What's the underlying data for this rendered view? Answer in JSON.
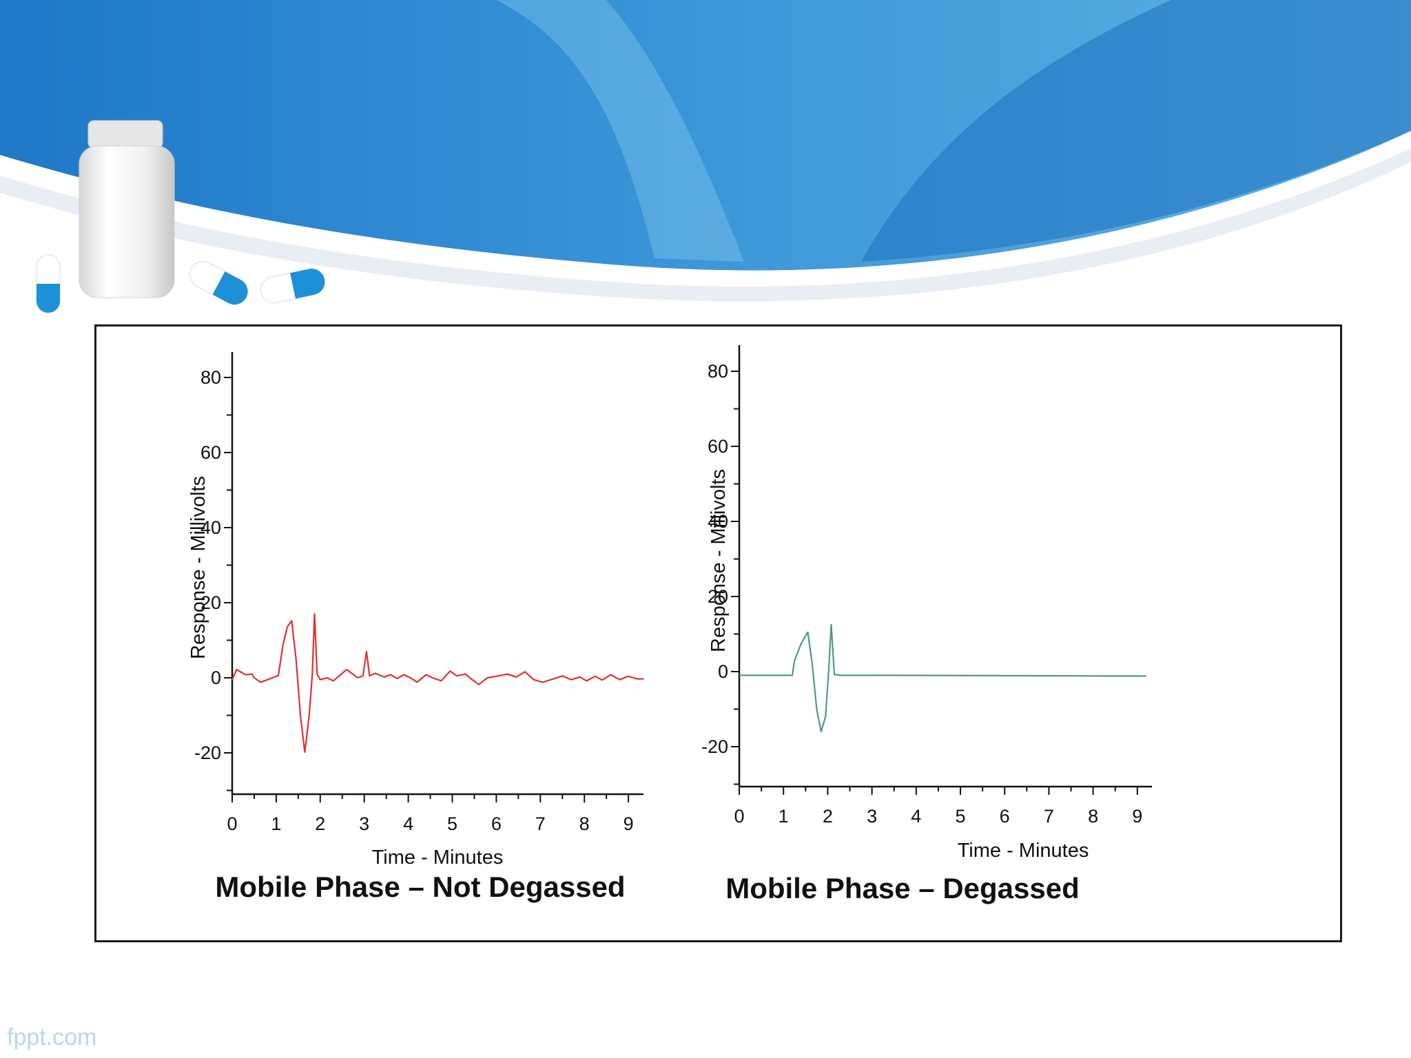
{
  "slide": {
    "watermark": "fppt.com",
    "colors": {
      "banner_dark": "#1d73c4",
      "banner_light": "#5fb1e1",
      "capsule_blue": "#1e90d8",
      "frame": "#1a1a1a"
    },
    "decorations": [
      "pill-bottle-icon",
      "capsule-icon",
      "capsule-icon",
      "capsule-icon"
    ]
  },
  "chart_data": [
    {
      "type": "line",
      "caption": "Mobile Phase – Not Degassed",
      "xlabel": "Time - Minutes",
      "ylabel": "Response - Millivolts",
      "xlim": [
        0,
        9.35
      ],
      "ylim": [
        -30,
        88
      ],
      "xticks": [
        0,
        1,
        2,
        3,
        4,
        5,
        6,
        7,
        8,
        9
      ],
      "yticks": [
        -20,
        0,
        20,
        40,
        60,
        80
      ],
      "grid": false,
      "series": [
        {
          "color": "#e03030",
          "points": [
            [
              0,
              -0.5
            ],
            [
              0.1,
              2.2
            ],
            [
              0.3,
              0.8
            ],
            [
              0.45,
              1.0
            ],
            [
              0.5,
              0.0
            ],
            [
              0.65,
              -1.2
            ],
            [
              0.85,
              -0.3
            ],
            [
              1.05,
              0.6
            ],
            [
              1.15,
              8.5
            ],
            [
              1.25,
              13.5
            ],
            [
              1.35,
              15.2
            ],
            [
              1.45,
              5.0
            ],
            [
              1.55,
              -10.0
            ],
            [
              1.65,
              -19.8
            ],
            [
              1.75,
              -10.0
            ],
            [
              1.82,
              1.0
            ],
            [
              1.87,
              17.0
            ],
            [
              1.93,
              1.0
            ],
            [
              2.0,
              -0.5
            ],
            [
              2.15,
              0.0
            ],
            [
              2.3,
              -0.8
            ],
            [
              2.6,
              2.2
            ],
            [
              2.85,
              0.0
            ],
            [
              2.97,
              0.5
            ],
            [
              3.05,
              7.0
            ],
            [
              3.12,
              0.5
            ],
            [
              3.25,
              1.2
            ],
            [
              3.45,
              0.2
            ],
            [
              3.6,
              0.8
            ],
            [
              3.75,
              -0.2
            ],
            [
              3.9,
              0.8
            ],
            [
              4.05,
              0.0
            ],
            [
              4.2,
              -1.2
            ],
            [
              4.4,
              0.8
            ],
            [
              4.55,
              0.0
            ],
            [
              4.75,
              -0.8
            ],
            [
              4.95,
              1.8
            ],
            [
              5.1,
              0.5
            ],
            [
              5.3,
              1.0
            ],
            [
              5.45,
              -0.5
            ],
            [
              5.6,
              -1.8
            ],
            [
              5.8,
              0.0
            ],
            [
              6.05,
              0.5
            ],
            [
              6.25,
              1.0
            ],
            [
              6.45,
              0.2
            ],
            [
              6.65,
              1.6
            ],
            [
              6.85,
              -0.5
            ],
            [
              7.05,
              -1.2
            ],
            [
              7.3,
              -0.3
            ],
            [
              7.5,
              0.5
            ],
            [
              7.7,
              -0.5
            ],
            [
              7.9,
              0.2
            ],
            [
              8.05,
              -0.8
            ],
            [
              8.25,
              0.4
            ],
            [
              8.4,
              -0.6
            ],
            [
              8.6,
              0.8
            ],
            [
              8.8,
              -0.5
            ],
            [
              9.0,
              0.4
            ],
            [
              9.2,
              -0.3
            ],
            [
              9.35,
              -0.3
            ]
          ]
        }
      ]
    },
    {
      "type": "line",
      "caption": "Mobile Phase – Degassed",
      "xlabel": "Time - Minutes",
      "ylabel": "Response - Millivolts",
      "xlim": [
        0,
        9.2
      ],
      "ylim": [
        -30,
        88
      ],
      "xticks": [
        0,
        1,
        2,
        3,
        4,
        5,
        6,
        7,
        8,
        9
      ],
      "yticks": [
        -20,
        0,
        20,
        40,
        60,
        80
      ],
      "grid": false,
      "series": [
        {
          "color": "#4f9a80",
          "points": [
            [
              0,
              -1.0
            ],
            [
              1.2,
              -1.0
            ],
            [
              1.25,
              3.0
            ],
            [
              1.4,
              7.5
            ],
            [
              1.55,
              10.5
            ],
            [
              1.65,
              2.0
            ],
            [
              1.75,
              -10.0
            ],
            [
              1.85,
              -16.0
            ],
            [
              1.95,
              -12.0
            ],
            [
              2.02,
              0.0
            ],
            [
              2.08,
              12.5
            ],
            [
              2.15,
              -0.8
            ],
            [
              2.3,
              -1.0
            ],
            [
              3.0,
              -1.0
            ],
            [
              9.2,
              -1.2
            ]
          ]
        }
      ]
    }
  ]
}
